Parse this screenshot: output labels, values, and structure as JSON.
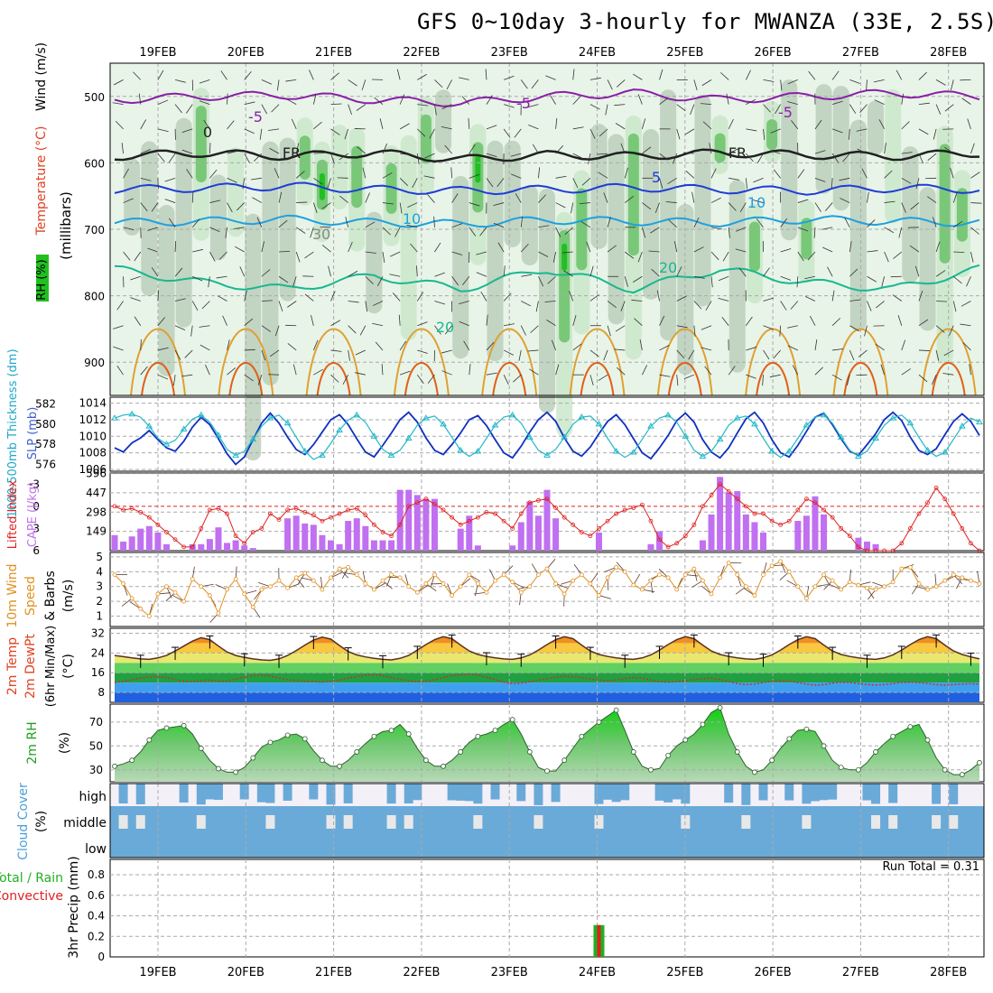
{
  "title": "GFS 0~10day 3-hourly for MWANZA (33E, 2.5S)",
  "dates": [
    "19FEB",
    "20FEB",
    "21FEB",
    "22FEB",
    "23FEB",
    "24FEB",
    "25FEB",
    "26FEB",
    "27FEB",
    "28FEB"
  ],
  "colors": {
    "rh_dark": "#2e8b2e",
    "rh_mid": "#78c878",
    "rh_light": "#c8e6c8",
    "rh_pale": "#e8f4e8",
    "purple": "#8a1fa8",
    "blue": "#1e3cd6",
    "cyan": "#1fa0e0",
    "teal": "#18b890",
    "orange": "#e0a030",
    "dkorange": "#e06018",
    "slp_line": "#1030c0",
    "thick_line": "#20b8c8",
    "cape_bar": "#c070f0",
    "li_line": "#e02020",
    "wind_line": "#e09020",
    "dew_line": "#c83030",
    "cloud": "#6aaad8",
    "precip_green": "#20b020",
    "precip_red": "#e02020"
  },
  "chart_data": [
    {
      "id": "upper-air",
      "type": "heatmap",
      "title": "GFS 0~10day 3-hourly for MWANZA (33E, 2.5S)",
      "ylabel": "(millibars)",
      "y_axis_labels": [
        "Wind (m/s)",
        "Temperature (°C)",
        "RH (%)"
      ],
      "yticks": [
        500,
        600,
        700,
        800,
        900
      ],
      "ylim": [
        950,
        450
      ],
      "contour_labels": [
        "-5",
        "-5",
        "-5",
        "0",
        "FR",
        "FR",
        "5",
        "10",
        "10",
        "20",
        "20",
        "30"
      ],
      "temperature_isotherms": [
        {
          "name": "-5",
          "pressure_mb": [
            505,
            500,
            498,
            505,
            510,
            500,
            495,
            505,
            500,
            495,
            500
          ]
        },
        {
          "name": "0",
          "pressure_mb": [
            590,
            585,
            590,
            585,
            595,
            588,
            590,
            585,
            588,
            590,
            585
          ]
        },
        {
          "name": "5",
          "pressure_mb": [
            640,
            638,
            635,
            640,
            642,
            640,
            637,
            640,
            642,
            638,
            640
          ]
        },
        {
          "name": "10",
          "pressure_mb": [
            690,
            688,
            685,
            690,
            692,
            686,
            688,
            690,
            685,
            688,
            690
          ]
        },
        {
          "name": "20",
          "pressure_mb": [
            760,
            780,
            790,
            770,
            790,
            760,
            790,
            760,
            780,
            790,
            760
          ]
        }
      ]
    },
    {
      "id": "slp-thickness",
      "type": "line",
      "y_axis_labels": [
        "1000-500mb Thickness (dm)",
        "SLP (mb)"
      ],
      "left_ticks": [
        576,
        578,
        580,
        582
      ],
      "right_ticks": [
        1006,
        1008,
        1010,
        1012,
        1014
      ],
      "series": [
        {
          "name": "SLP (mb)",
          "values": [
            1008.6,
            1008.1,
            1009.2,
            1009.8,
            1010.7,
            1009.6,
            1008.6,
            1008.2,
            1009.4,
            1011.1,
            1012.3,
            1011.4,
            1009.7,
            1007.9,
            1006.6,
            1007.5,
            1009.6,
            1011.6,
            1012.8,
            1011.6,
            1009.9,
            1008.4,
            1007.8,
            1009.0,
            1010.5,
            1012.0,
            1012.6,
            1011.4,
            1009.7,
            1008.1,
            1007.5,
            1008.9,
            1010.4,
            1012.0,
            1012.9,
            1011.7,
            1009.8,
            1008.3,
            1007.8,
            1009.0,
            1010.4,
            1012.0,
            1012.5,
            1011.3,
            1009.6,
            1008.0,
            1007.4,
            1008.8,
            1010.5,
            1012.0,
            1012.9,
            1011.8,
            1009.8,
            1008.2,
            1007.6,
            1008.7,
            1010.3,
            1011.8,
            1012.6,
            1011.4,
            1009.7,
            1008.0,
            1007.3,
            1008.6,
            1010.1,
            1011.9,
            1012.8,
            1011.7,
            1009.6,
            1008.1,
            1007.4,
            1008.6,
            1010.4,
            1012.1,
            1012.9,
            1011.6,
            1009.6,
            1008.0,
            1007.5,
            1008.9,
            1010.6,
            1012.3,
            1012.8,
            1011.4,
            1009.7,
            1008.2,
            1007.7,
            1009.0,
            1010.3,
            1012.0,
            1012.9,
            1011.9,
            1009.9,
            1008.3,
            1007.8,
            1008.5,
            1010.2,
            1011.8,
            1012.7,
            1011.8,
            1010.1
          ]
        },
        {
          "name": "1000-500mb Thickness (dm)",
          "values": [
            580.6,
            580.9,
            581.0,
            580.7,
            579.8,
            578.6,
            578.0,
            578.4,
            579.5,
            580.5,
            580.9,
            580.2,
            578.9,
            577.5,
            576.9,
            577.3,
            578.5,
            579.8,
            580.6,
            580.9,
            580.1,
            578.7,
            577.3,
            576.5,
            576.9,
            578.1,
            579.4,
            580.4,
            580.9,
            580.2,
            578.8,
            577.5,
            576.9,
            577.4,
            578.6,
            579.9,
            580.6,
            580.8,
            580.0,
            578.7,
            577.4,
            576.8,
            577.3,
            578.6,
            579.9,
            580.7,
            580.9,
            580.1,
            578.7,
            577.4,
            576.9,
            577.5,
            578.7,
            580.0,
            580.7,
            580.8,
            580.0,
            578.6,
            577.3,
            576.7,
            577.2,
            578.5,
            579.8,
            580.6,
            580.9,
            580.2,
            578.8,
            577.4,
            576.8,
            577.3,
            578.5,
            579.9,
            580.6,
            580.8,
            580.0,
            578.6,
            577.3,
            576.7,
            577.3,
            578.6,
            579.9,
            580.7,
            580.9,
            580.1,
            578.7,
            577.4,
            576.8,
            577.3,
            578.6,
            579.9,
            580.6,
            580.9,
            580.1,
            578.7,
            577.4,
            576.8,
            577.2,
            578.5,
            579.8,
            580.6,
            580.2
          ]
        }
      ]
    },
    {
      "id": "cape-li",
      "type": "bar",
      "y_axis_labels": [
        "Lifted Index",
        "CAPE (J/kg)"
      ],
      "left_ticks": [
        -3,
        0,
        3,
        6
      ],
      "right_ticks": [
        149,
        298,
        447,
        596
      ],
      "series": [
        {
          "name": "CAPE (J/kg)",
          "values": [
            120,
            70,
            110,
            170,
            190,
            140,
            50,
            0,
            0,
            50,
            50,
            90,
            180,
            60,
            80,
            40,
            20,
            0,
            0,
            0,
            250,
            270,
            210,
            200,
            120,
            80,
            50,
            230,
            250,
            190,
            80,
            80,
            80,
            470,
            470,
            430,
            400,
            400,
            0,
            0,
            170,
            270,
            40,
            0,
            0,
            0,
            40,
            220,
            380,
            270,
            470,
            250,
            0,
            0,
            0,
            0,
            140,
            0,
            0,
            0,
            0,
            0,
            50,
            150,
            0,
            0,
            0,
            0,
            80,
            280,
            570,
            450,
            460,
            280,
            220,
            140,
            0,
            0,
            0,
            230,
            270,
            420,
            280,
            0,
            0,
            0,
            100,
            70,
            50,
            0,
            0,
            0,
            0,
            0,
            0,
            0,
            0,
            0,
            0,
            0,
            0
          ]
        },
        {
          "name": "Lifted Index",
          "values": [
            0,
            0.5,
            0.3,
            0.8,
            1.5,
            2.5,
            3.5,
            4.5,
            5.5,
            5.5,
            3.0,
            0.5,
            0.3,
            1.0,
            4.0,
            5.0,
            3.5,
            3.0,
            1.0,
            1.8,
            0.5,
            0.3,
            0.8,
            1.2,
            2.0,
            1.5,
            1.0,
            0.5,
            0.3,
            1.2,
            2.5,
            3.5,
            4.0,
            2.5,
            0,
            -0.5,
            -1.0,
            -0.3,
            0.5,
            1.5,
            2.5,
            2.0,
            1.5,
            0.8,
            1.0,
            2.0,
            3.0,
            1.0,
            -0.5,
            -0.8,
            -1.0,
            0.2,
            1.5,
            2.5,
            3.5,
            4.0,
            3.0,
            2.0,
            1.0,
            0.5,
            0.2,
            -0.2,
            2.0,
            4.5,
            5.5,
            5.0,
            4.0,
            2.5,
            0,
            -1.5,
            -3.0,
            -2.0,
            -1.0,
            0,
            1.0,
            1.0,
            2.0,
            2.5,
            2.0,
            0.5,
            -1.0,
            -0.5,
            0.5,
            1.5,
            3.0,
            4.0,
            5.5,
            6.0,
            6.0,
            6.0,
            6.0,
            5.0,
            3.0,
            1.0,
            -0.5,
            -2.5,
            -1.0,
            1.0,
            3.0,
            5.0,
            6.0
          ]
        }
      ]
    },
    {
      "id": "wind10m",
      "type": "line",
      "y_axis_labels": [
        "10m Wind Speed & Barbs (m/s)"
      ],
      "yticks": [
        1,
        2,
        3,
        4,
        5
      ],
      "series": [
        {
          "name": "10m Wind Speed",
          "values": [
            3.8,
            3.2,
            2.2,
            1.5,
            1.0,
            2.5,
            3.0,
            2.6,
            2.0,
            3.5,
            3.0,
            2.4,
            1.2,
            2.8,
            3.5,
            2.5,
            1.6,
            2.8,
            3.0,
            3.4,
            2.9,
            3.6,
            3.9,
            3.4,
            2.8,
            3.6,
            4.2,
            4.3,
            3.8,
            3.2,
            2.8,
            3.4,
            3.8,
            3.6,
            3.0,
            2.6,
            3.2,
            3.8,
            3.2,
            2.4,
            3.0,
            3.8,
            3.2,
            2.6,
            3.4,
            3.8,
            3.3,
            2.6,
            3.0,
            3.8,
            4.2,
            3.2,
            2.5,
            3.4,
            3.8,
            3.2,
            2.4,
            3.6,
            4.3,
            4.0,
            3.1,
            2.8,
            3.4,
            3.8,
            3.6,
            2.8,
            3.8,
            4.2,
            3.4,
            2.5,
            3.6,
            4.6,
            3.8,
            3.0,
            2.4,
            3.8,
            4.4,
            4.7,
            4.0,
            3.0,
            2.2,
            3.0,
            3.8,
            3.4,
            2.8,
            3.3,
            3.1,
            2.9,
            2.8,
            3.0,
            3.3,
            4.2,
            4.3,
            3.2,
            2.8,
            3.0,
            3.4,
            3.8,
            3.6,
            3.4,
            3.2
          ]
        }
      ]
    },
    {
      "id": "temp2m",
      "type": "area",
      "y_axis_labels": [
        "2m Temp",
        "2m DewPt",
        "(6hr Min/Max)",
        "(°C)"
      ],
      "yticks": [
        8,
        16,
        24,
        32
      ],
      "series": [
        {
          "name": "2m Temp",
          "values": [
            23,
            22.5,
            22,
            21.6,
            21.4,
            22,
            23,
            24.8,
            26.8,
            28.8,
            30.2,
            29.4,
            26.8,
            24.4,
            23,
            22.2,
            21.6,
            21.2,
            21,
            21.6,
            23,
            25,
            27.2,
            29.2,
            30.4,
            29.6,
            27,
            24.6,
            23.2,
            22.4,
            21.8,
            21.4,
            21.2,
            21.8,
            23,
            25.2,
            27.4,
            29.4,
            30.6,
            29.8,
            27.2,
            24.8,
            23.4,
            22.6,
            22,
            21.6,
            21.4,
            22,
            23.2,
            25.2,
            27.4,
            29.4,
            30.6,
            29.8,
            27.2,
            24.8,
            23.4,
            22.6,
            22,
            21.6,
            21.4,
            22,
            23.2,
            25.2,
            27.4,
            29.4,
            30.6,
            29.8,
            27.2,
            24.8,
            23.4,
            22.6,
            22,
            21.6,
            21.4,
            22,
            23.2,
            25.2,
            27.4,
            29.4,
            30.6,
            29.8,
            27.2,
            24.8,
            23.4,
            22.6,
            22,
            21.6,
            21.4,
            22,
            23.2,
            25.2,
            27.4,
            29.4,
            30.6,
            29.8,
            27.2,
            24.8,
            23.4,
            22.4,
            21.6
          ]
        },
        {
          "name": "2m DewPt",
          "values": [
            12,
            12.5,
            13.2,
            13.8,
            14.2,
            14.5,
            14.0,
            13.2,
            12.6,
            12.4,
            12.8,
            13.0,
            12.6,
            12.6,
            13.4,
            14.2,
            14.8,
            15.0,
            14.6,
            13.8,
            13.2,
            12.8,
            12.6,
            12.4,
            12.2,
            12.6,
            13.0,
            13.8,
            14.4,
            15.0,
            15.2,
            14.8,
            14.0,
            13.2,
            12.8,
            12.4,
            12.6,
            13.2,
            14.0,
            14.8,
            15.2,
            15.4,
            15.0,
            14.2,
            13.2,
            12.2,
            11.6,
            11.8,
            12.4,
            13.0,
            13.6,
            14.2,
            14.6,
            14.4,
            14.0,
            13.4,
            13.0,
            12.8,
            13.0,
            13.6,
            14.0,
            13.8,
            13.0,
            12.4,
            12.2,
            12.4,
            12.8,
            13.2,
            13.6,
            13.8,
            13.2,
            12.4,
            11.6,
            11.2,
            11.4,
            12.0,
            12.6,
            12.8,
            12.6,
            12.0,
            11.4,
            11.0,
            11.2,
            11.8,
            12.2,
            12.0,
            11.6,
            11.2,
            11.0,
            11.2,
            11.6,
            12.0,
            12.2,
            12.0,
            11.6,
            11.2,
            11.0,
            11.2,
            11.4,
            11.6,
            11.4
          ]
        }
      ]
    },
    {
      "id": "rh2m",
      "type": "area",
      "y_axis_labels": [
        "2m RH",
        "(%)"
      ],
      "yticks": [
        30,
        50,
        70
      ],
      "series": [
        {
          "name": "2m RH",
          "values": [
            33,
            35,
            38,
            45,
            55,
            63,
            65,
            66,
            67,
            60,
            48,
            38,
            31,
            28,
            28,
            32,
            40,
            49,
            53,
            55,
            59,
            60,
            56,
            46,
            38,
            33,
            33,
            38,
            45,
            52,
            58,
            62,
            63,
            68,
            60,
            48,
            38,
            33,
            33,
            38,
            45,
            53,
            58,
            60,
            63,
            68,
            72,
            60,
            45,
            32,
            29,
            29,
            38,
            48,
            58,
            64,
            70,
            75,
            80,
            63,
            45,
            33,
            30,
            31,
            42,
            50,
            55,
            60,
            68,
            78,
            82,
            60,
            45,
            33,
            28,
            30,
            38,
            48,
            56,
            63,
            64,
            62,
            50,
            38,
            32,
            30,
            30,
            36,
            45,
            52,
            58,
            62,
            66,
            68,
            55,
            40,
            30,
            26,
            26,
            30,
            36
          ]
        }
      ]
    },
    {
      "id": "cloud",
      "type": "bar",
      "y_axis_labels": [
        "Cloud Cover",
        "(%)"
      ],
      "categories": [
        "high",
        "middle",
        "low"
      ]
    },
    {
      "id": "precip",
      "type": "bar",
      "y_axis_labels": [
        "Total / Rain",
        "Convective",
        "3hr Precip (mm)"
      ],
      "yticks": [
        0,
        0.2,
        0.4,
        0.6,
        0.8
      ],
      "run_total_label": "Run Total = 0.31",
      "series": [
        {
          "name": "Total / Rain",
          "index": 56,
          "value": 0.31
        },
        {
          "name": "Convective",
          "index": 56,
          "value": 0.31
        }
      ]
    }
  ]
}
